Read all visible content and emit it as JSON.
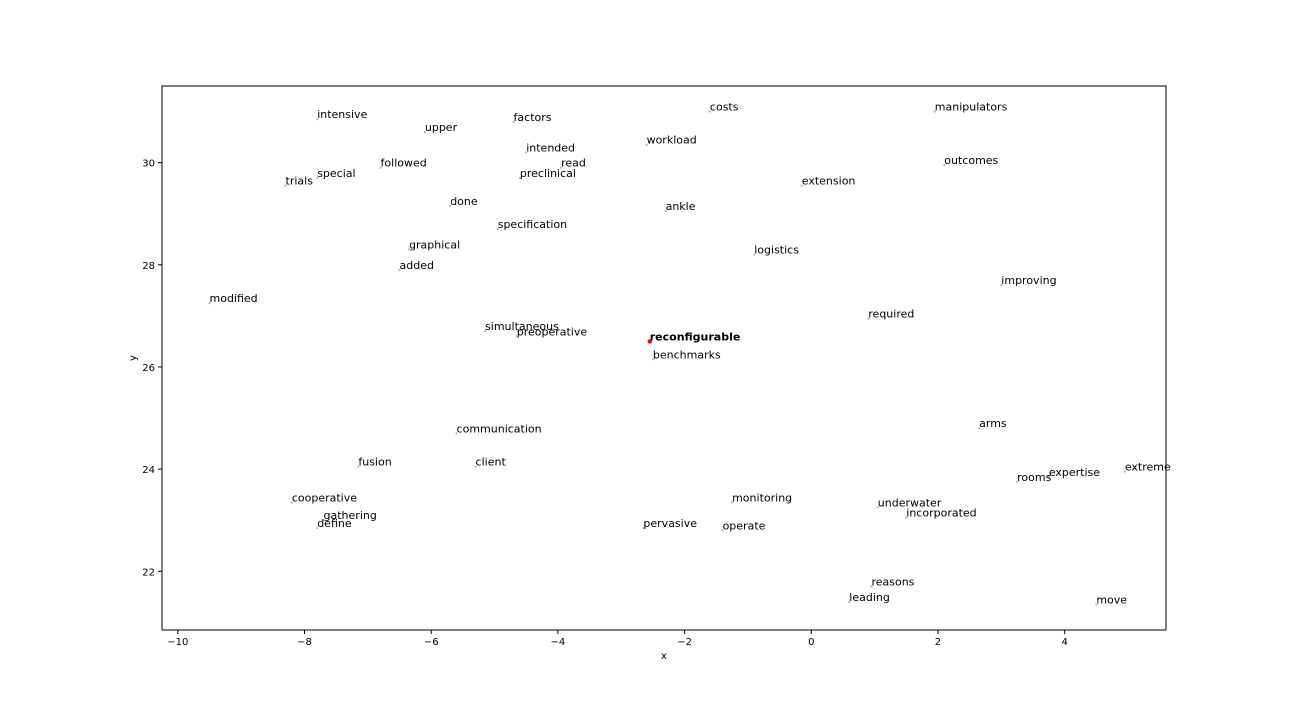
{
  "chart_data": {
    "type": "scatter",
    "title": "",
    "xlabel": "x",
    "ylabel": "y",
    "xlim": [
      -10.25,
      5.6
    ],
    "ylim": [
      20.85,
      31.5
    ],
    "xticks": [
      -10,
      -8,
      -6,
      -4,
      -2,
      0,
      2,
      4
    ],
    "yticks": [
      22,
      24,
      26,
      28,
      30
    ],
    "grid": false,
    "point_color": "#7fc8e8",
    "highlight_color": "#ff0000",
    "points": [
      {
        "label": "intensive",
        "x": -7.8,
        "y": 30.85
      },
      {
        "label": "factors",
        "x": -4.7,
        "y": 30.8
      },
      {
        "label": "costs",
        "x": -1.6,
        "y": 31.0
      },
      {
        "label": "manipulators",
        "x": 1.95,
        "y": 31.0
      },
      {
        "label": "upper",
        "x": -6.1,
        "y": 30.6
      },
      {
        "label": "workload",
        "x": -2.6,
        "y": 30.35
      },
      {
        "label": "intended",
        "x": -4.5,
        "y": 30.2
      },
      {
        "label": "outcomes",
        "x": 2.1,
        "y": 29.95
      },
      {
        "label": "followed",
        "x": -6.8,
        "y": 29.9
      },
      {
        "label": "read",
        "x": -3.95,
        "y": 29.9
      },
      {
        "label": "special",
        "x": -7.8,
        "y": 29.7
      },
      {
        "label": "preclinical",
        "x": -4.6,
        "y": 29.7
      },
      {
        "label": "trials",
        "x": -8.3,
        "y": 29.55
      },
      {
        "label": "extension",
        "x": -0.15,
        "y": 29.55
      },
      {
        "label": "done",
        "x": -5.7,
        "y": 29.15
      },
      {
        "label": "ankle",
        "x": -2.3,
        "y": 29.05
      },
      {
        "label": "specification",
        "x": -4.95,
        "y": 28.7
      },
      {
        "label": "graphical",
        "x": -6.35,
        "y": 28.3
      },
      {
        "label": "logistics",
        "x": -0.9,
        "y": 28.2
      },
      {
        "label": "added",
        "x": -6.5,
        "y": 27.9
      },
      {
        "label": "improving",
        "x": 3.0,
        "y": 27.6
      },
      {
        "label": "modified",
        "x": -9.5,
        "y": 27.25
      },
      {
        "label": "required",
        "x": 0.9,
        "y": 26.95
      },
      {
        "label": "simultaneous",
        "x": -5.15,
        "y": 26.7
      },
      {
        "label": "preoperative",
        "x": -4.65,
        "y": 26.6
      },
      {
        "label": "reconfigurable",
        "x": -2.55,
        "y": 26.5,
        "highlight": true
      },
      {
        "label": "benchmarks",
        "x": -2.5,
        "y": 26.15
      },
      {
        "label": "communication",
        "x": -5.6,
        "y": 24.7
      },
      {
        "label": "arms",
        "x": 2.65,
        "y": 24.8
      },
      {
        "label": "fusion",
        "x": -7.15,
        "y": 24.05
      },
      {
        "label": "client",
        "x": -5.3,
        "y": 24.05
      },
      {
        "label": "extreme",
        "x": 4.95,
        "y": 23.95
      },
      {
        "label": "expertise",
        "x": 3.75,
        "y": 23.85
      },
      {
        "label": "rooms",
        "x": 3.25,
        "y": 23.75
      },
      {
        "label": "cooperative",
        "x": -8.2,
        "y": 23.35
      },
      {
        "label": "monitoring",
        "x": -1.25,
        "y": 23.35
      },
      {
        "label": "underwater",
        "x": 1.05,
        "y": 23.25
      },
      {
        "label": "incorporated",
        "x": 1.5,
        "y": 23.05
      },
      {
        "label": "gathering",
        "x": -7.7,
        "y": 23.0
      },
      {
        "label": "define",
        "x": -7.8,
        "y": 22.85
      },
      {
        "label": "pervasive",
        "x": -2.65,
        "y": 22.85
      },
      {
        "label": "operate",
        "x": -1.4,
        "y": 22.8
      },
      {
        "label": "reasons",
        "x": 0.95,
        "y": 21.7
      },
      {
        "label": "leading",
        "x": 0.6,
        "y": 21.4
      },
      {
        "label": "move",
        "x": 4.5,
        "y": 21.35
      }
    ]
  }
}
